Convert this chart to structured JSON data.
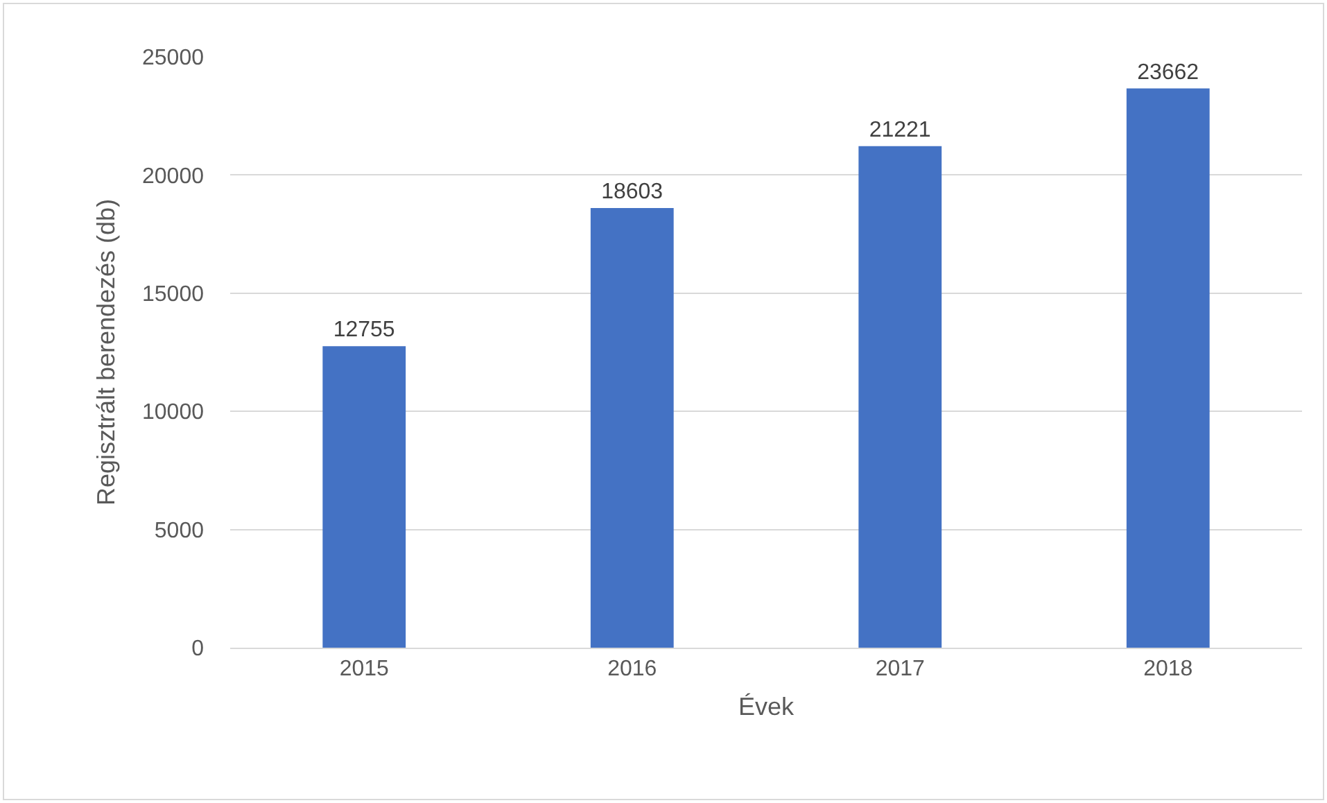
{
  "chart_data": {
    "type": "bar",
    "xlabel": "Évek",
    "ylabel": "Regisztrált berendezés (db)",
    "categories": [
      "2015",
      "2016",
      "2017",
      "2018"
    ],
    "values": [
      12755,
      18603,
      21221,
      23662
    ],
    "color": "#4472c4",
    "ylim": [
      0,
      25000
    ],
    "yticks": [
      0,
      5000,
      10000,
      15000,
      20000,
      25000
    ],
    "grid": "y",
    "data_labels": true
  }
}
